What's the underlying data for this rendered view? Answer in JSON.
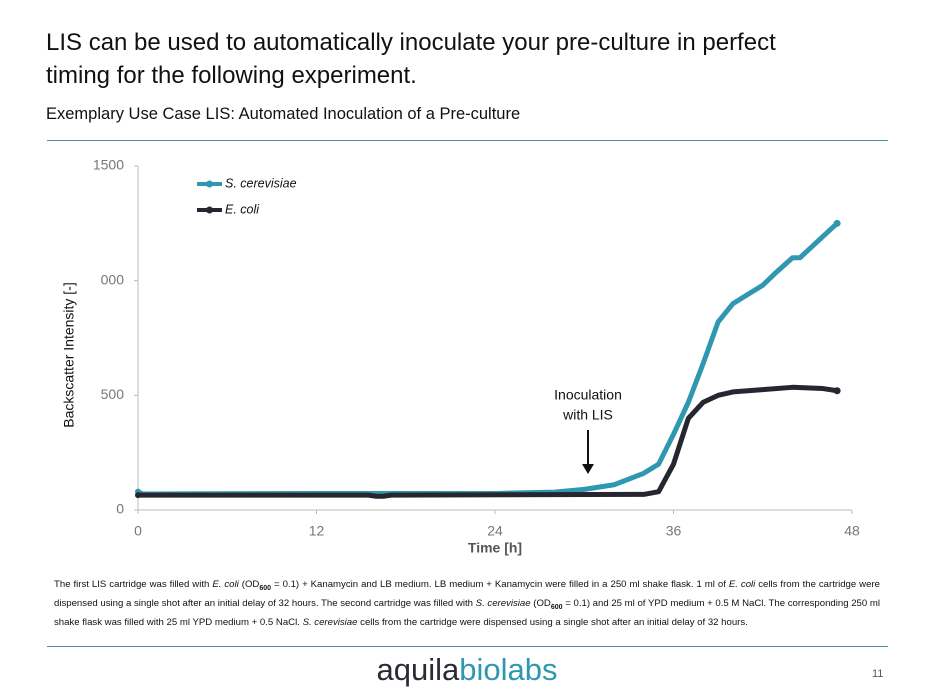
{
  "headline": "LIS can be used to automatically inoculate your pre-culture in perfect timing for the following experiment.",
  "subtitle": "Exemplary Use Case LIS: Automated Inoculation of a Pre-culture",
  "chart_data": {
    "type": "line",
    "xlabel": "Time [h]",
    "ylabel": "Backscatter Intensity [-]",
    "annotation": [
      "Inoculation",
      "with LIS"
    ],
    "xlim": [
      0,
      48
    ],
    "xticks": [
      0,
      12,
      24,
      36,
      48
    ],
    "ylim": [
      0,
      1500
    ],
    "yticks": [
      0,
      500,
      {
        "value": 1000,
        "label": "000"
      },
      1500
    ],
    "legend": "top-left",
    "series": [
      {
        "name": "S. cerevisiae",
        "color": "#2f97b0",
        "x": [
          0,
          0.3,
          12,
          24,
          28,
          30,
          32,
          34,
          35,
          36,
          37,
          38,
          39,
          40,
          41,
          42,
          42.8,
          44,
          44.5,
          47
        ],
        "values": [
          80,
          70,
          72,
          72,
          78,
          90,
          110,
          160,
          200,
          330,
          470,
          640,
          820,
          900,
          940,
          980,
          1030,
          1100,
          1100,
          1250
        ]
      },
      {
        "name": "E. coli",
        "color": "#262631",
        "x": [
          0,
          15.5,
          16,
          16.5,
          17,
          34,
          35,
          36,
          36.5,
          37,
          38,
          39,
          40,
          42,
          44,
          46,
          47
        ],
        "values": [
          65,
          65,
          60,
          60,
          65,
          68,
          80,
          200,
          300,
          400,
          470,
          500,
          515,
          525,
          535,
          530,
          520
        ]
      }
    ]
  },
  "caption": [
    "The first LIS cartridge was filled with ",
    "E. coli",
    " (OD",
    "600",
    " = 0.1) + Kanamycin and LB medium. LB medium + Kanamycin were filled in a 250 ml shake flask. 1 ml of ",
    "E. coli",
    " cells from the cartridge were dispensed using a single shot after an initial delay of 32 hours. The second cartridge was filled with ",
    "S. cerevisiae",
    " (OD",
    "600",
    " = 0.1) and 25 ml of YPD medium + 0.5 M NaCl. The corresponding 250 ml shake flask was filled with 25 ml YPD medium + 0.5 NaCl. ",
    "S. cerevisiae",
    " cells from the cartridge were dispensed using a single shot after an initial delay of 32 hours."
  ],
  "footer": {
    "logo": [
      "aquila",
      "biolabs"
    ],
    "page": "11"
  }
}
